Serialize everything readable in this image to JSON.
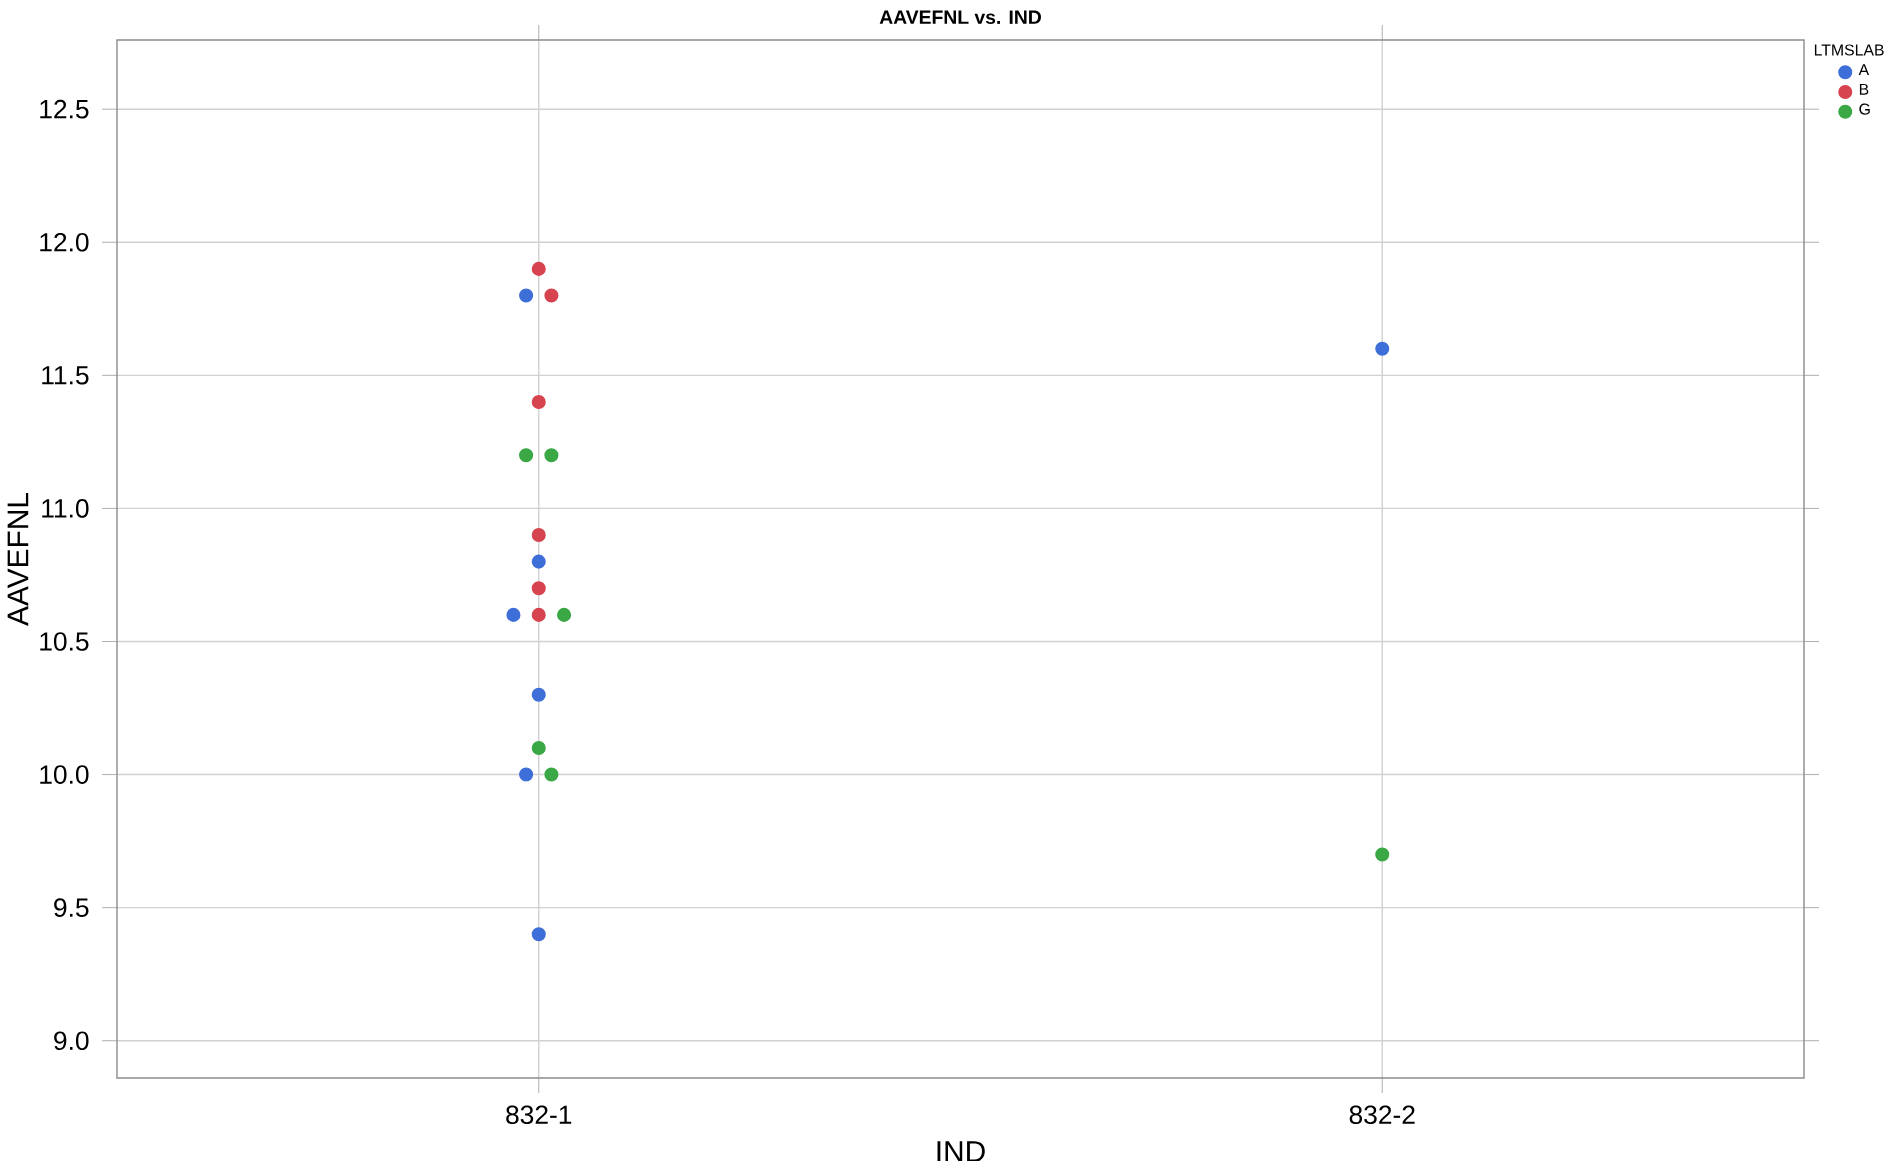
{
  "chart_data": {
    "type": "scatter",
    "title": "AAVEFNL vs. IND",
    "xlabel": "IND",
    "ylabel": "AAVEFNL",
    "legend_title": "LTMSLAB",
    "categories": [
      "832-1",
      "832-2"
    ],
    "ylim": [
      8.86,
      12.76
    ],
    "yticks": [
      {
        "value": 9.0,
        "label": "9.0"
      },
      {
        "value": 9.5,
        "label": "9.5"
      },
      {
        "value": 10.0,
        "label": "10.0"
      },
      {
        "value": 10.5,
        "label": "10.5"
      },
      {
        "value": 11.0,
        "label": "11.0"
      },
      {
        "value": 11.5,
        "label": "11.5"
      },
      {
        "value": 12.0,
        "label": "12.0"
      },
      {
        "value": 12.5,
        "label": "12.5"
      }
    ],
    "grid": true,
    "legend": "top right",
    "series": [
      {
        "name": "A",
        "color": "#3e6fd8",
        "x": [
          "832-1",
          "832-1",
          "832-1",
          "832-1",
          "832-1",
          "832-1",
          "832-2"
        ],
        "values": [
          11.8,
          10.8,
          10.6,
          10.3,
          10.0,
          9.4,
          11.6
        ]
      },
      {
        "name": "B",
        "color": "#d6444f",
        "x": [
          "832-1",
          "832-1",
          "832-1",
          "832-1",
          "832-1",
          "832-1"
        ],
        "values": [
          11.9,
          11.8,
          11.4,
          10.9,
          10.7,
          10.6
        ]
      },
      {
        "name": "G",
        "color": "#3aa845",
        "x": [
          "832-1",
          "832-1",
          "832-1",
          "832-1",
          "832-1",
          "832-2"
        ],
        "values": [
          11.2,
          11.2,
          10.6,
          10.1,
          10.0,
          9.7
        ]
      }
    ]
  }
}
